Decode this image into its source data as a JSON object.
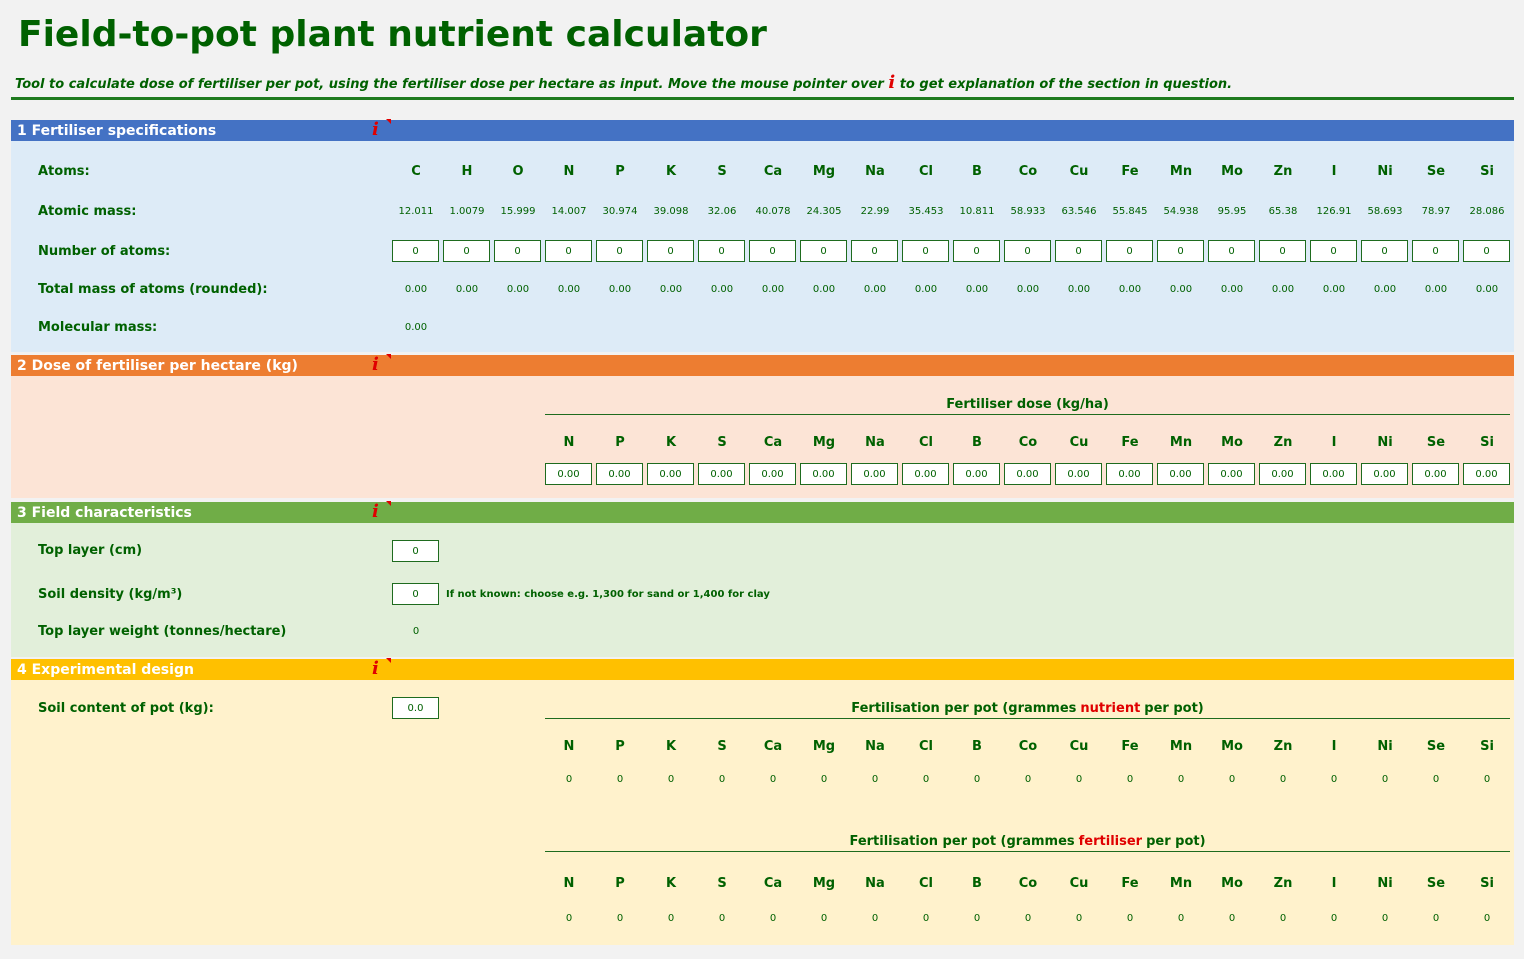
{
  "header": {
    "title": "Field-to-pot plant nutrient calculator",
    "subtitle_before": "Tool to calculate dose of fertiliser per pot, using the fertiliser dose per hectare as input. Move the mouse pointer over",
    "info_icon": "i",
    "subtitle_after": "to get explanation of the section in question."
  },
  "section1": {
    "title": "1  Fertiliser specifications",
    "atoms_label": "Atoms:",
    "atoms": [
      "C",
      "H",
      "O",
      "N",
      "P",
      "K",
      "S",
      "Ca",
      "Mg",
      "Na",
      "Cl",
      "B",
      "Co",
      "Cu",
      "Fe",
      "Mn",
      "Mo",
      "Zn",
      "I",
      "Ni",
      "Se",
      "Si"
    ],
    "mass_label": "Atomic mass:",
    "masses": [
      12.011,
      1.0079,
      15.999,
      14.007,
      30.974,
      39.098,
      32.06,
      40.078,
      24.305,
      22.99,
      35.453,
      10.811,
      58.933,
      63.546,
      55.845,
      54.938,
      95.95,
      65.38,
      126.91,
      58.693,
      78.97,
      28.086
    ],
    "count_label": "Number of atoms:",
    "counts": [
      "0",
      "0",
      "0",
      "0",
      "0",
      "0",
      "0",
      "0",
      "0",
      "0",
      "0",
      "0",
      "0",
      "0",
      "0",
      "0",
      "0",
      "0",
      "0",
      "0",
      "0",
      "0"
    ],
    "total_label": "Total mass of atoms (rounded):",
    "totals": [
      "0.00",
      "0.00",
      "0.00",
      "0.00",
      "0.00",
      "0.00",
      "0.00",
      "0.00",
      "0.00",
      "0.00",
      "0.00",
      "0.00",
      "0.00",
      "0.00",
      "0.00",
      "0.00",
      "0.00",
      "0.00",
      "0.00",
      "0.00",
      "0.00",
      "0.00"
    ],
    "molecular_label": "Molecular mass:",
    "molecular_mass": "0.00"
  },
  "section2": {
    "title": "2  Dose of fertiliser per hectare (kg)",
    "table_title": "Fertiliser dose (kg/ha)",
    "nutrients": [
      "N",
      "P",
      "K",
      "S",
      "Ca",
      "Mg",
      "Na",
      "Cl",
      "B",
      "Co",
      "Cu",
      "Fe",
      "Mn",
      "Mo",
      "Zn",
      "I",
      "Ni",
      "Se",
      "Si"
    ],
    "doses": [
      "0.00",
      "0.00",
      "0.00",
      "0.00",
      "0.00",
      "0.00",
      "0.00",
      "0.00",
      "0.00",
      "0.00",
      "0.00",
      "0.00",
      "0.00",
      "0.00",
      "0.00",
      "0.00",
      "0.00",
      "0.00",
      "0.00"
    ]
  },
  "section3": {
    "title": "3  Field characteristics",
    "top_layer_label": "Top layer (cm)",
    "top_layer": "0",
    "density_label": "Soil density (kg/m³)",
    "density": "0",
    "density_note": "If not known: choose e.g. 1,300 for sand or 1,400 for clay",
    "weight_label": "Top layer weight (tonnes/hectare)",
    "weight": "0"
  },
  "section4": {
    "title": "4  Experimental design",
    "soil_label": "Soil content of pot (kg):",
    "soil": "0.0",
    "nutrient_table": {
      "title_before": "Fertilisation per pot (grammes",
      "title_highlight": "nutrient",
      "title_after": "per pot)",
      "nutrients": [
        "N",
        "P",
        "K",
        "S",
        "Ca",
        "Mg",
        "Na",
        "Cl",
        "B",
        "Co",
        "Cu",
        "Fe",
        "Mn",
        "Mo",
        "Zn",
        "I",
        "Ni",
        "Se",
        "Si"
      ],
      "values": [
        "0",
        "0",
        "0",
        "0",
        "0",
        "0",
        "0",
        "0",
        "0",
        "0",
        "0",
        "0",
        "0",
        "0",
        "0",
        "0",
        "0",
        "0",
        "0"
      ]
    },
    "fertiliser_table": {
      "title_before": "Fertilisation per pot (grammes",
      "title_highlight": "fertiliser",
      "title_after": "per pot)",
      "nutrients": [
        "N",
        "P",
        "K",
        "S",
        "Ca",
        "Mg",
        "Na",
        "Cl",
        "B",
        "Co",
        "Cu",
        "Fe",
        "Mn",
        "Mo",
        "Zn",
        "I",
        "Ni",
        "Se",
        "Si"
      ],
      "values": [
        "0",
        "0",
        "0",
        "0",
        "0",
        "0",
        "0",
        "0",
        "0",
        "0",
        "0",
        "0",
        "0",
        "0",
        "0",
        "0",
        "0",
        "0",
        "0"
      ]
    }
  }
}
